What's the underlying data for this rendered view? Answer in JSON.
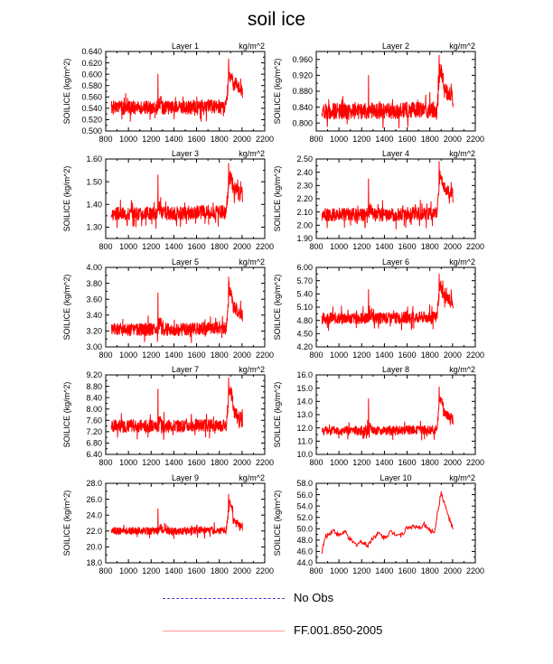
{
  "title": "soil ice",
  "legend": {
    "obs": {
      "label": "No Obs",
      "color": "#3b3bd6",
      "style": "dashed"
    },
    "model": {
      "label": "FF.001.850-2005",
      "color": "#ff9a9a",
      "style": "solid"
    }
  },
  "series_color": "#ff0000",
  "chart_data": [
    {
      "type": "line",
      "title": "Layer 1",
      "unit": "kg/m^2",
      "ylabel": "SOILICE  (kg/m^2)",
      "xlim": [
        800,
        2200
      ],
      "ylim": [
        0.5,
        0.64
      ],
      "yticks": [
        0.5,
        0.52,
        0.54,
        0.56,
        0.58,
        0.6,
        0.62,
        0.64
      ],
      "ytick_labels": [
        "0.500",
        "0.520",
        "0.540",
        "0.560",
        "0.580",
        "0.600",
        "0.620",
        "0.640"
      ],
      "xticks": [
        800,
        1000,
        1200,
        1400,
        1600,
        1800,
        2000,
        2200
      ],
      "xtick_labels": [
        "800",
        "1000",
        "1200",
        "1400",
        "1600",
        "1800",
        "2000",
        "2200"
      ],
      "base": 0.541,
      "amp": 0.012,
      "spike": 0.6,
      "peak": 0.627,
      "end": 0.57,
      "seed": 1
    },
    {
      "type": "line",
      "title": "Layer 2",
      "unit": "kg/m^2",
      "ylabel": "SOILICE  (kg/m^2)",
      "xlim": [
        800,
        2200
      ],
      "ylim": [
        0.78,
        0.98
      ],
      "yticks": [
        0.8,
        0.84,
        0.88,
        0.92,
        0.96
      ],
      "ytick_labels": [
        "0.800",
        "0.840",
        "0.880",
        "0.920",
        "0.960"
      ],
      "xticks": [
        800,
        1000,
        1200,
        1400,
        1600,
        1800,
        2000,
        2200
      ],
      "xtick_labels": [
        "800",
        "1000",
        "1200",
        "1400",
        "1600",
        "1800",
        "2000",
        "2200"
      ],
      "base": 0.83,
      "amp": 0.02,
      "spike": 0.92,
      "peak": 0.97,
      "end": 0.86,
      "seed": 2
    },
    {
      "type": "line",
      "title": "Layer 3",
      "unit": "kg/m^2",
      "ylabel": "SOILICE  (kg/m^2)",
      "xlim": [
        800,
        2200
      ],
      "ylim": [
        1.25,
        1.6
      ],
      "yticks": [
        1.3,
        1.4,
        1.5,
        1.6
      ],
      "ytick_labels": [
        "1.30",
        "1.40",
        "1.50",
        "1.60"
      ],
      "xticks": [
        800,
        1000,
        1200,
        1400,
        1600,
        1800,
        2000,
        2200
      ],
      "xtick_labels": [
        "800",
        "1000",
        "1200",
        "1400",
        "1600",
        "1800",
        "2000",
        "2200"
      ],
      "base": 1.36,
      "amp": 0.03,
      "spike": 1.53,
      "peak": 1.58,
      "end": 1.44,
      "seed": 3
    },
    {
      "type": "line",
      "title": "Layer 4",
      "unit": "kg/m^2",
      "ylabel": "SOILICE  (kg/m^2)",
      "xlim": [
        800,
        2200
      ],
      "ylim": [
        1.9,
        2.5
      ],
      "yticks": [
        1.9,
        2.0,
        2.1,
        2.2,
        2.3,
        2.4,
        2.5
      ],
      "ytick_labels": [
        "1.90",
        "2.00",
        "2.10",
        "2.20",
        "2.30",
        "2.40",
        "2.50"
      ],
      "xticks": [
        800,
        1000,
        1200,
        1400,
        1600,
        1800,
        2000,
        2200
      ],
      "xtick_labels": [
        "800",
        "1000",
        "1200",
        "1400",
        "1600",
        "1800",
        "2000",
        "2200"
      ],
      "base": 2.08,
      "amp": 0.05,
      "spike": 2.35,
      "peak": 2.48,
      "end": 2.22,
      "seed": 4
    },
    {
      "type": "line",
      "title": "Layer 5",
      "unit": "kg/m^2",
      "ylabel": "SOILICE  (kg/m^2)",
      "xlim": [
        800,
        2200
      ],
      "ylim": [
        3.0,
        4.0
      ],
      "yticks": [
        3.0,
        3.2,
        3.4,
        3.6,
        3.8,
        4.0
      ],
      "ytick_labels": [
        "3.00",
        "3.20",
        "3.40",
        "3.60",
        "3.80",
        "4.00"
      ],
      "xticks": [
        800,
        1000,
        1200,
        1400,
        1600,
        1800,
        2000,
        2200
      ],
      "xtick_labels": [
        "800",
        "1000",
        "1200",
        "1400",
        "1600",
        "1800",
        "2000",
        "2200"
      ],
      "base": 3.22,
      "amp": 0.08,
      "spike": 3.68,
      "peak": 3.88,
      "end": 3.4,
      "seed": 5
    },
    {
      "type": "line",
      "title": "Layer 6",
      "unit": "kg/m^2",
      "ylabel": "SOILICE  (kg/m^2)",
      "xlim": [
        800,
        2200
      ],
      "ylim": [
        4.2,
        6.0
      ],
      "yticks": [
        4.2,
        4.5,
        4.8,
        5.1,
        5.4,
        5.7,
        6.0
      ],
      "ytick_labels": [
        "4.20",
        "4.50",
        "4.80",
        "5.10",
        "5.40",
        "5.70",
        "6.00"
      ],
      "xticks": [
        800,
        1000,
        1200,
        1400,
        1600,
        1800,
        2000,
        2200
      ],
      "xtick_labels": [
        "800",
        "1000",
        "1200",
        "1400",
        "1600",
        "1800",
        "2000",
        "2200"
      ],
      "base": 4.85,
      "amp": 0.13,
      "spike": 5.5,
      "peak": 5.85,
      "end": 5.2,
      "seed": 6
    },
    {
      "type": "line",
      "title": "Layer 7",
      "unit": "kg/m^2",
      "ylabel": "SOILICE  (kg/m^2)",
      "xlim": [
        800,
        2200
      ],
      "ylim": [
        6.4,
        9.2
      ],
      "yticks": [
        6.4,
        6.8,
        7.2,
        7.6,
        8.0,
        8.4,
        8.8,
        9.2
      ],
      "ytick_labels": [
        "6.40",
        "6.80",
        "7.20",
        "7.60",
        "8.00",
        "8.40",
        "8.80",
        "9.20"
      ],
      "xticks": [
        800,
        1000,
        1200,
        1400,
        1600,
        1800,
        2000,
        2200
      ],
      "xtick_labels": [
        "800",
        "1000",
        "1200",
        "1400",
        "1600",
        "1800",
        "2000",
        "2200"
      ],
      "base": 7.4,
      "amp": 0.22,
      "spike": 8.7,
      "peak": 9.1,
      "end": 7.6,
      "seed": 7
    },
    {
      "type": "line",
      "title": "Layer 8",
      "unit": "kg/m^2",
      "ylabel": "SOILICE  (kg/m^2)",
      "xlim": [
        800,
        2200
      ],
      "ylim": [
        10.0,
        16.0
      ],
      "yticks": [
        10.0,
        11.0,
        12.0,
        13.0,
        14.0,
        15.0,
        16.0
      ],
      "ytick_labels": [
        "10.0",
        "11.0",
        "12.0",
        "13.0",
        "14.0",
        "15.0",
        "16.0"
      ],
      "xticks": [
        800,
        1000,
        1200,
        1400,
        1600,
        1800,
        2000,
        2200
      ],
      "xtick_labels": [
        "800",
        "1000",
        "1200",
        "1400",
        "1600",
        "1800",
        "2000",
        "2200"
      ],
      "base": 11.8,
      "amp": 0.35,
      "spike": 14.2,
      "peak": 15.1,
      "end": 12.6,
      "seed": 8
    },
    {
      "type": "line",
      "title": "Layer 9",
      "unit": "kg/m^2",
      "ylabel": "SOILICE  (kg/m^2)",
      "xlim": [
        800,
        2200
      ],
      "ylim": [
        18.0,
        28.0
      ],
      "yticks": [
        18.0,
        20.0,
        22.0,
        24.0,
        26.0,
        28.0
      ],
      "ytick_labels": [
        "18.0",
        "20.0",
        "22.0",
        "24.0",
        "26.0",
        "28.0"
      ],
      "xticks": [
        800,
        1000,
        1200,
        1400,
        1600,
        1800,
        2000,
        2200
      ],
      "xtick_labels": [
        "800",
        "1000",
        "1200",
        "1400",
        "1600",
        "1800",
        "2000",
        "2200"
      ],
      "base": 22.0,
      "amp": 0.45,
      "spike": 24.8,
      "peak": 26.6,
      "end": 22.5,
      "seed": 9
    },
    {
      "type": "line",
      "title": "Layer 10",
      "unit": "kg/m^2",
      "ylabel": "SOILICE  (kg/m^2)",
      "xlim": [
        800,
        2200
      ],
      "ylim": [
        44.0,
        58.0
      ],
      "yticks": [
        44.0,
        46.0,
        48.0,
        50.0,
        52.0,
        54.0,
        56.0,
        58.0
      ],
      "ytick_labels": [
        "44.0",
        "46.0",
        "48.0",
        "50.0",
        "52.0",
        "54.0",
        "56.0",
        "58.0"
      ],
      "xticks": [
        800,
        1000,
        1200,
        1400,
        1600,
        1800,
        2000,
        2200
      ],
      "xtick_labels": [
        "800",
        "1000",
        "1200",
        "1400",
        "1600",
        "1800",
        "2000",
        "2200"
      ],
      "smooth": true,
      "anchors": [
        [
          850,
          46.0
        ],
        [
          880,
          48.5
        ],
        [
          950,
          49.8
        ],
        [
          1000,
          48.8
        ],
        [
          1050,
          49.5
        ],
        [
          1100,
          48.0
        ],
        [
          1150,
          47.2
        ],
        [
          1200,
          47.8
        ],
        [
          1250,
          47.0
        ],
        [
          1300,
          48.5
        ],
        [
          1350,
          49.2
        ],
        [
          1400,
          48.4
        ],
        [
          1450,
          49.4
        ],
        [
          1500,
          49.2
        ],
        [
          1550,
          48.9
        ],
        [
          1600,
          50.2
        ],
        [
          1650,
          50.4
        ],
        [
          1700,
          50.0
        ],
        [
          1750,
          50.8
        ],
        [
          1800,
          49.6
        ],
        [
          1840,
          49.5
        ],
        [
          1870,
          53.0
        ],
        [
          1900,
          56.4
        ],
        [
          1920,
          55.0
        ],
        [
          1950,
          53.0
        ],
        [
          1980,
          51.2
        ],
        [
          2005,
          49.8
        ]
      ],
      "seed": 10
    }
  ]
}
